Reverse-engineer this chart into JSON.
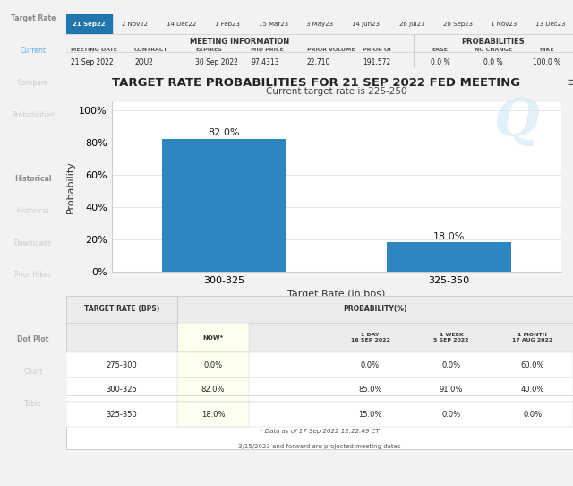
{
  "title": "TARGET RATE PROBABILITIES FOR 21 SEP 2022 FED MEETING",
  "subtitle": "Current target rate is 225-250",
  "xlabel": "Target Rate (in bps)",
  "ylabel": "Probability",
  "categories": [
    "300-325",
    "325-350"
  ],
  "values": [
    82.0,
    18.0
  ],
  "bar_color": "#2E86C1",
  "yticks": [
    0,
    20,
    40,
    60,
    80,
    100
  ],
  "ytick_labels": [
    "0%",
    "20%",
    "40%",
    "60%",
    "80%",
    "100%"
  ],
  "ylim": [
    0,
    105
  ],
  "tab_dates": [
    "21 Sep22",
    "2 Nov22",
    "14 Dec22",
    "1 Feb23",
    "15 Mar23",
    "3 May23",
    "14 Jun23",
    "26 Jul23",
    "20 Sep23",
    "1 Nov23",
    "13 Dec23"
  ],
  "active_tab": "21 Sep22",
  "meeting_info_keys": [
    "MEETING DATE",
    "CONTRACT",
    "EXPIRES",
    "MID PRICE",
    "PRIOR VOLUME",
    "PRIOR OI"
  ],
  "meeting_info_vals": [
    "21 Sep 2022",
    "2QU2",
    "30 Sep 2022",
    "97.4313",
    "22,710",
    "191,572"
  ],
  "prob_labels": [
    "EASE",
    "NO CHANGE",
    "HIKE"
  ],
  "prob_vals": [
    "0.0 %",
    "0.0 %",
    "100.0 %"
  ],
  "table_row_labels": [
    "275-300",
    "300-325",
    "325-350"
  ],
  "table_col_headers": [
    "NOW*",
    "1 DAY\n16 SEP 2022",
    "1 WEEK\n5 SEP 2022",
    "1 MONTH\n17 AUG 2022"
  ],
  "table_data": [
    [
      "0.0%",
      "0.0%",
      "0.0%",
      "60.0%"
    ],
    [
      "82.0%",
      "85.0%",
      "91.0%",
      "40.0%"
    ],
    [
      "18.0%",
      "15.0%",
      "0.0%",
      "0.0%"
    ]
  ],
  "now_highlight_color": "#FFFFF0",
  "table_footnote1": "* Data as of 17 Sep 2022 12:22:49 CT",
  "table_footnote2": "3/15/2023 and forward are projected meeting dates",
  "tab_active_bg": "#2176AE",
  "tab_active_fg": "#FFFFFF",
  "tab_inactive_fg": "#333333",
  "sidebar_bg": "#2C3E50",
  "sidebar_section_color": "#888888",
  "sidebar_item_color": "#CCCCCC",
  "sidebar_active_color": "#5DADE2",
  "grid_color": "#E0E0E0",
  "bg_white": "#FFFFFF",
  "bg_light": "#F2F2F2",
  "bg_header": "#ECECEC",
  "border_color": "#CCCCCC",
  "sidebar_items": [
    {
      "label": "Target Rate",
      "type": "section"
    },
    {
      "label": "Current",
      "type": "active"
    },
    {
      "label": "Compare",
      "type": "item"
    },
    {
      "label": "Probabilities",
      "type": "item"
    },
    {
      "label": "",
      "type": "spacer"
    },
    {
      "label": "Historical",
      "type": "section"
    },
    {
      "label": "Historical",
      "type": "item"
    },
    {
      "label": "Downloads",
      "type": "item"
    },
    {
      "label": "Prior Hikes",
      "type": "item"
    },
    {
      "label": "",
      "type": "spacer"
    },
    {
      "label": "Dot Plot",
      "type": "section"
    },
    {
      "label": "Chart",
      "type": "item"
    },
    {
      "label": "Table",
      "type": "item"
    }
  ]
}
